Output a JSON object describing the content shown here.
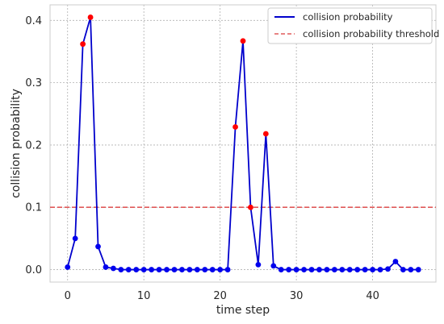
{
  "chart_data": {
    "type": "line",
    "xlabel": "time step",
    "ylabel": "collision probability",
    "xlim": [
      -2.3,
      48.3
    ],
    "ylim": [
      -0.02,
      0.425
    ],
    "x_ticks": [
      0,
      10,
      20,
      30,
      40
    ],
    "y_ticks": [
      0.0,
      0.1,
      0.2,
      0.3,
      0.4
    ],
    "y_tick_labels": [
      "0.0",
      "0.1",
      "0.2",
      "0.3",
      "0.4"
    ],
    "grid": true,
    "legend_position": "top-right",
    "threshold": 0.1,
    "series": [
      {
        "name": "collision probability",
        "color": "#0000cc",
        "marker_color": "#0000ee",
        "above_threshold_marker_color": "#ff0000",
        "x": [
          0,
          1,
          2,
          3,
          4,
          5,
          6,
          7,
          8,
          9,
          10,
          11,
          12,
          13,
          14,
          15,
          16,
          17,
          18,
          19,
          20,
          21,
          22,
          23,
          24,
          25,
          26,
          27,
          28,
          29,
          30,
          31,
          32,
          33,
          34,
          35,
          36,
          37,
          38,
          39,
          40,
          41,
          42,
          43,
          44,
          45,
          46
        ],
        "y": [
          0.004,
          0.05,
          0.362,
          0.405,
          0.037,
          0.004,
          0.002,
          0,
          0,
          0,
          0,
          0,
          0,
          0,
          0,
          0,
          0,
          0,
          0,
          0,
          0,
          0,
          0.229,
          0.367,
          0.1,
          0.008,
          0.218,
          0.006,
          0,
          0,
          0,
          0,
          0,
          0,
          0,
          0,
          0,
          0,
          0,
          0,
          0,
          0,
          0.001,
          0.013,
          0,
          0,
          0
        ]
      }
    ],
    "threshold_series": {
      "name": "collision probability threshold",
      "color": "#e05a5a",
      "y": 0.1
    }
  }
}
